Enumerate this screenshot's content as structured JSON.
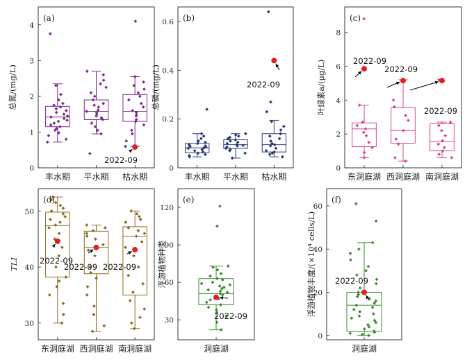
{
  "highlight_color": "#e02020",
  "chart_data": [
    {
      "panel": "(a)",
      "type": "box",
      "categories": [
        "丰水期",
        "平水期",
        "枯水期"
      ],
      "ylabel": "总氮/(mg/L)",
      "yticks": [
        0,
        1,
        2,
        3,
        4
      ],
      "ylim": [
        0,
        4.5
      ],
      "color": "#7b2c8c",
      "boxes": [
        {
          "q1": 1.15,
          "median": 1.42,
          "q3": 1.72,
          "whisker_low": 0.72,
          "whisker_high": 2.35,
          "points": [
            0.72,
            0.8,
            0.9,
            0.98,
            1.05,
            1.1,
            1.15,
            1.2,
            1.25,
            1.3,
            1.33,
            1.38,
            1.42,
            1.45,
            1.5,
            1.55,
            1.6,
            1.65,
            1.7,
            1.75,
            1.8,
            1.9,
            2.05,
            2.3,
            3.75
          ]
        },
        {
          "q1": 1.35,
          "median": 1.58,
          "q3": 1.9,
          "whisker_low": 0.95,
          "whisker_high": 2.7,
          "points": [
            0.4,
            0.95,
            1.05,
            1.15,
            1.25,
            1.35,
            1.4,
            1.45,
            1.5,
            1.55,
            1.58,
            1.62,
            1.7,
            1.75,
            1.8,
            1.9,
            2.0,
            2.1,
            2.25,
            2.35,
            2.45,
            2.6,
            2.7
          ]
        },
        {
          "q1": 1.3,
          "median": 1.58,
          "q3": 2.05,
          "whisker_low": 0.6,
          "whisker_high": 2.55,
          "points": [
            0.6,
            0.75,
            0.95,
            1.05,
            1.2,
            1.3,
            1.35,
            1.45,
            1.5,
            1.55,
            1.6,
            1.7,
            1.8,
            1.9,
            2.0,
            2.1,
            2.2,
            2.3,
            2.4,
            2.55,
            4.1
          ]
        }
      ],
      "highlight": {
        "category": "枯水期",
        "value": 0.58,
        "label": "2022-09"
      }
    },
    {
      "panel": "(b)",
      "type": "box",
      "categories": [
        "丰水期",
        "平水期",
        "枯水期"
      ],
      "ylabel": "总磷/(mg/L)",
      "yticks": [
        0,
        0.2,
        0.4,
        0.6
      ],
      "yticklabels": [
        "0",
        "0.2",
        "0.4",
        "0.6"
      ],
      "ylim": [
        0,
        0.66
      ],
      "color": "#2a3a78",
      "boxes": [
        {
          "q1": 0.062,
          "median": 0.082,
          "q3": 0.1,
          "whisker_low": 0.045,
          "whisker_high": 0.14,
          "points": [
            0.045,
            0.05,
            0.055,
            0.06,
            0.065,
            0.07,
            0.075,
            0.08,
            0.082,
            0.085,
            0.088,
            0.09,
            0.095,
            0.1,
            0.105,
            0.11,
            0.12,
            0.13,
            0.14,
            0.24
          ]
        },
        {
          "q1": 0.08,
          "median": 0.095,
          "q3": 0.115,
          "whisker_low": 0.04,
          "whisker_high": 0.14,
          "points": [
            0.04,
            0.06,
            0.07,
            0.075,
            0.08,
            0.085,
            0.09,
            0.092,
            0.095,
            0.1,
            0.105,
            0.11,
            0.115,
            0.12,
            0.125,
            0.13,
            0.135,
            0.14
          ]
        },
        {
          "q1": 0.065,
          "median": 0.095,
          "q3": 0.14,
          "whisker_low": 0.045,
          "whisker_high": 0.195,
          "points": [
            0.045,
            0.055,
            0.06,
            0.065,
            0.07,
            0.08,
            0.09,
            0.095,
            0.1,
            0.11,
            0.12,
            0.13,
            0.14,
            0.155,
            0.17,
            0.19,
            0.27,
            0.23,
            0.64
          ]
        }
      ],
      "highlight": {
        "category": "枯水期",
        "value": 0.44,
        "label": "2022-09"
      }
    },
    {
      "panel": "(c)",
      "type": "box",
      "categories": [
        "东洞庭湖",
        "西洞庭湖",
        "南洞庭湖"
      ],
      "ylabel": "叶绿素a/(μg/L)",
      "yticks": [
        0,
        2,
        4,
        6,
        8
      ],
      "ylim": [
        0,
        9.5
      ],
      "color": "#d8458c",
      "boxes": [
        {
          "q1": 1.25,
          "median": 2.3,
          "q3": 2.65,
          "whisker_low": 0.6,
          "whisker_high": 3.7,
          "points": [
            0.6,
            0.9,
            1.2,
            1.5,
            1.9,
            2.1,
            2.3,
            2.5,
            2.7,
            3.7,
            8.8
          ]
        },
        {
          "q1": 1.45,
          "median": 2.2,
          "q3": 3.55,
          "whisker_low": 0.4,
          "whisker_high": 5.2,
          "points": [
            0.4,
            0.6,
            1.4,
            1.7,
            2.2,
            2.8,
            3.1,
            3.6,
            4.0,
            5.2
          ]
        },
        {
          "q1": 1.0,
          "median": 1.55,
          "q3": 2.6,
          "whisker_low": 0.6,
          "whisker_high": 2.7,
          "points": [
            0.6,
            0.8,
            1.0,
            1.2,
            1.4,
            1.6,
            1.9,
            2.2,
            2.5,
            2.7,
            5.2
          ]
        }
      ],
      "highlights": [
        {
          "category": "东洞庭湖",
          "value": 5.85,
          "label": "2022-09"
        },
        {
          "category": "西洞庭湖",
          "value": 5.15,
          "label": "2022-09"
        },
        {
          "category": "南洞庭湖",
          "value": 5.15,
          "label": "2022-09"
        }
      ]
    },
    {
      "panel": "(d)",
      "type": "box",
      "categories": [
        "东洞庭湖",
        "西洞庭湖",
        "南洞庭湖"
      ],
      "ylabel": "TLI",
      "yticks": [
        30,
        40,
        50
      ],
      "ylim": [
        27,
        54
      ],
      "color": "#8c6a1e",
      "boxes": [
        {
          "q1": 38.2,
          "median": 47.4,
          "q3": 49.8,
          "whisker_low": 30.0,
          "whisker_high": 52.5,
          "points": [
            30.0,
            31.5,
            33.5,
            35.0,
            36.5,
            37.5,
            38.2,
            40.0,
            42.0,
            43.5,
            45.0,
            46.0,
            47.0,
            47.5,
            48.0,
            48.5,
            49.0,
            49.5,
            50.0,
            50.5,
            51.0,
            51.5,
            52.0,
            52.5
          ]
        },
        {
          "q1": 38.8,
          "median": 43.5,
          "q3": 46.4,
          "whisker_low": 28.5,
          "whisker_high": 47.5,
          "points": [
            28.5,
            29.5,
            31.5,
            33.0,
            35.0,
            36.5,
            38.0,
            39.0,
            40.0,
            42.0,
            43.0,
            44.0,
            45.0,
            45.5,
            46.0,
            46.5,
            47.0,
            47.5
          ]
        },
        {
          "q1": 35.0,
          "median": 45.5,
          "q3": 47.2,
          "whisker_low": 29.0,
          "whisker_high": 50.0,
          "points": [
            29.0,
            30.0,
            31.0,
            32.5,
            34.0,
            35.5,
            37.0,
            38.5,
            40.0,
            42.0,
            43.5,
            44.5,
            45.5,
            46.0,
            46.5,
            47.0,
            48.0,
            48.5,
            49.0,
            49.5,
            50.0
          ]
        }
      ],
      "highlights": [
        {
          "category": "东洞庭湖",
          "value": 44.6,
          "label": "2022-09"
        },
        {
          "category": "西洞庭湖",
          "value": 43.5,
          "label": "2022-09"
        },
        {
          "category": "南洞庭湖",
          "value": 43.1,
          "label": "2022-09"
        }
      ]
    },
    {
      "panel": "(e)",
      "type": "box",
      "categories": [
        "洞庭湖"
      ],
      "ylabel": "浮游植物种类",
      "yticks": [
        30,
        60,
        90,
        120
      ],
      "ylim": [
        14,
        135
      ],
      "color": "#3e8a30",
      "boxes": [
        {
          "q1": 42,
          "median": 51,
          "q3": 63,
          "whisker_low": 22,
          "whisker_high": 73,
          "points": [
            22,
            28,
            33,
            36,
            38,
            40,
            42,
            44,
            46,
            47,
            48,
            49,
            50,
            51,
            52,
            53,
            54,
            55,
            56,
            57,
            58,
            59,
            60,
            62,
            63,
            65,
            67,
            70,
            72,
            73,
            105,
            121
          ]
        }
      ],
      "highlight": {
        "category": "洞庭湖",
        "value": 48,
        "label": "2022-09"
      }
    },
    {
      "panel": "(f)",
      "type": "box",
      "categories": [
        "洞庭湖"
      ],
      "ylabel": "浮游植物丰度/(×10⁴ cells/L)",
      "yticks": [
        0,
        20,
        40,
        60
      ],
      "ylim": [
        -2,
        68
      ],
      "color": "#3e8a30",
      "boxes": [
        {
          "q1": 2,
          "median": 14,
          "q3": 20,
          "whisker_low": 0,
          "whisker_high": 43,
          "points": [
            0,
            0.5,
            1,
            1.5,
            2,
            3,
            4,
            5,
            6,
            7,
            8,
            9,
            10,
            11,
            12,
            13,
            14,
            15,
            16,
            17,
            18,
            19,
            20,
            22,
            24,
            26,
            28,
            30,
            32,
            35,
            38,
            40,
            43,
            53,
            61
          ]
        }
      ],
      "highlight": {
        "category": "洞庭湖",
        "value": 20,
        "label": "2022-09"
      }
    }
  ]
}
